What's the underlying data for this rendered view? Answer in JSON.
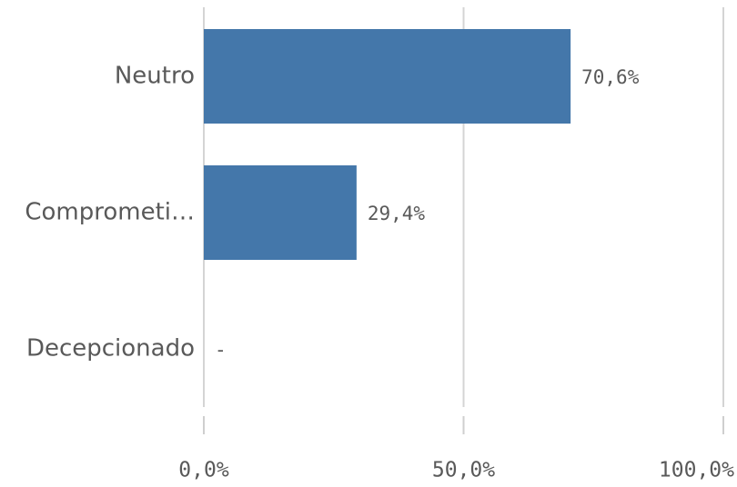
{
  "chart_data": {
    "type": "bar",
    "orientation": "horizontal",
    "categories": [
      "Neutro",
      "Compromeṭi…",
      "Decepcionado"
    ],
    "values": [
      70.6,
      29.4,
      0
    ],
    "value_labels": [
      "70,6%",
      "29,4%",
      "-"
    ],
    "xlim": [
      0,
      100
    ],
    "x_ticks": [
      0,
      50,
      100
    ],
    "x_tick_labels": [
      "0,0%",
      "50,0%",
      "100,0%"
    ],
    "grid": true,
    "legend": "none",
    "bar_color": "#4477aa"
  }
}
